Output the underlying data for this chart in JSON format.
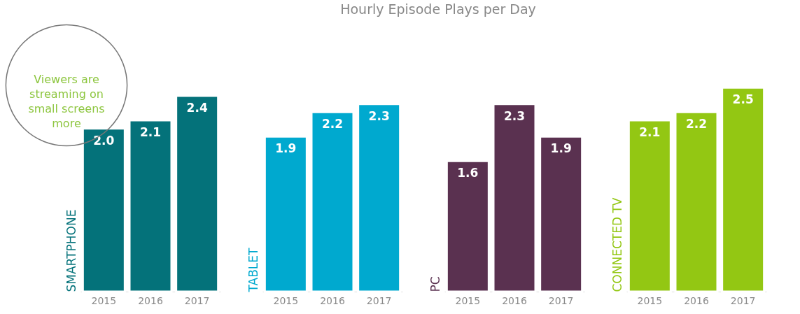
{
  "chart_data": [
    {
      "type": "other",
      "title": "Hourly Episode Plays per Day"
    },
    {
      "type": "bar",
      "ylabel": "SMARTPHONE",
      "categories": [
        "2015",
        "2016",
        "2017"
      ],
      "values": [
        2.0,
        2.1,
        2.4
      ],
      "value_labels": [
        "2.0",
        "2.1",
        "2.4"
      ],
      "color": "#04727a",
      "annotations": [
        "Viewers are streaming on small screens more"
      ]
    },
    {
      "type": "bar",
      "ylabel": "TABLET",
      "categories": [
        "2015",
        "2016",
        "2017"
      ],
      "values": [
        1.9,
        2.2,
        2.3
      ],
      "value_labels": [
        "1.9",
        "2.2",
        "2.3"
      ],
      "color": "#00a9cf"
    },
    {
      "type": "bar",
      "ylabel": "PC",
      "categories": [
        "2015",
        "2016",
        "2017"
      ],
      "values": [
        1.6,
        2.3,
        1.9
      ],
      "value_labels": [
        "1.6",
        "2.3",
        "1.9"
      ],
      "color": "#5a3150"
    },
    {
      "type": "bar",
      "ylabel": "CONNECTED TV",
      "categories": [
        "2015",
        "2016",
        "2017"
      ],
      "values": [
        2.1,
        2.2,
        2.5
      ],
      "value_labels": [
        "2.1",
        "2.2",
        "2.5"
      ],
      "color": "#93c713"
    }
  ]
}
